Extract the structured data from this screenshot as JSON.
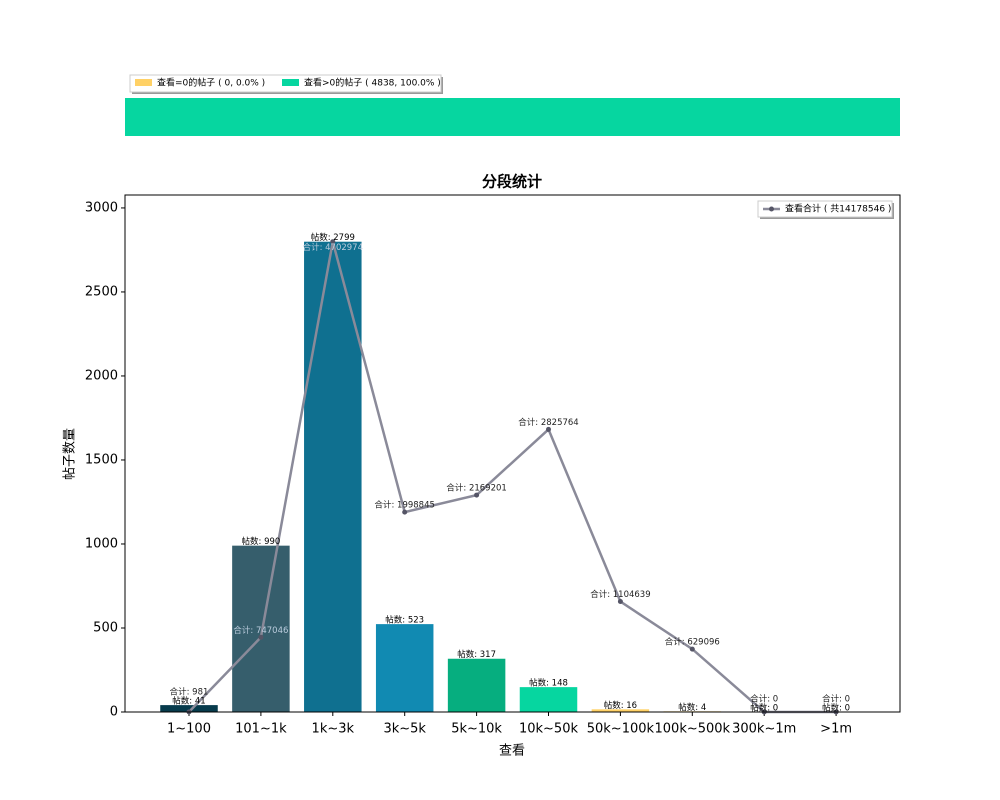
{
  "chart_data": [
    {
      "type": "stacked_bar",
      "series": [
        {
          "name": "查看=0的帖子 ( 0, 0.0% )",
          "color": "#ffd166",
          "values": [
            0
          ]
        },
        {
          "name": "查看>0的帖子 ( 4838, 100.0% )",
          "color": "#06d6a0",
          "values": [
            4838
          ]
        }
      ],
      "xlim": [
        0,
        4838
      ]
    },
    {
      "type": "bar",
      "title": "分段统计",
      "x_label": "查看",
      "y_label": "帖子数量",
      "categories": [
        "1~100",
        "101~1k",
        "1k~3k",
        "3k~5k",
        "5k~10k",
        "10k~50k",
        "50k~100k",
        "100k~500k",
        "300k~1m",
        ">1m"
      ],
      "values": [
        41,
        990,
        2799,
        523,
        317,
        148,
        16,
        4,
        0,
        0
      ],
      "value_labels": [
        "帖数: 41",
        "帖数: 990",
        "帖数: 2799",
        "帖数: 523",
        "帖数: 317",
        "帖数: 148",
        "帖数: 16",
        "帖数: 4",
        "帖数: 0",
        "帖数: 0"
      ],
      "colors": [
        "#073b4c",
        "#365e6c",
        "#0f7090",
        "#118ab2",
        "#06ae7f",
        "#06d6a0",
        "#ffd166",
        "#ffd166",
        "#ffd166",
        "#ffd166"
      ],
      "ylim": [
        0,
        3077
      ],
      "yticks": [
        0,
        500,
        1000,
        1500,
        2000,
        2500,
        3000
      ],
      "series": [
        {
          "name": "查看合计 ( 共14178546 )",
          "color": "#8a8a99",
          "axis": "y2",
          "values": [
            981,
            747046,
            4702974,
            1998845,
            2169201,
            2825764,
            1104639,
            629096,
            0,
            0
          ],
          "value_labels": [
            "合计: 981",
            "合计: 747046",
            "合计: 4702974",
            "合计: 1998845",
            "合计: 2169201",
            "合计: 2825764",
            "合计: 1104639",
            "合计: 629096",
            "合计: 0",
            "合计: 0"
          ]
        }
      ],
      "y2lim": [
        0,
        5170000
      ],
      "legend": "upper right"
    }
  ]
}
